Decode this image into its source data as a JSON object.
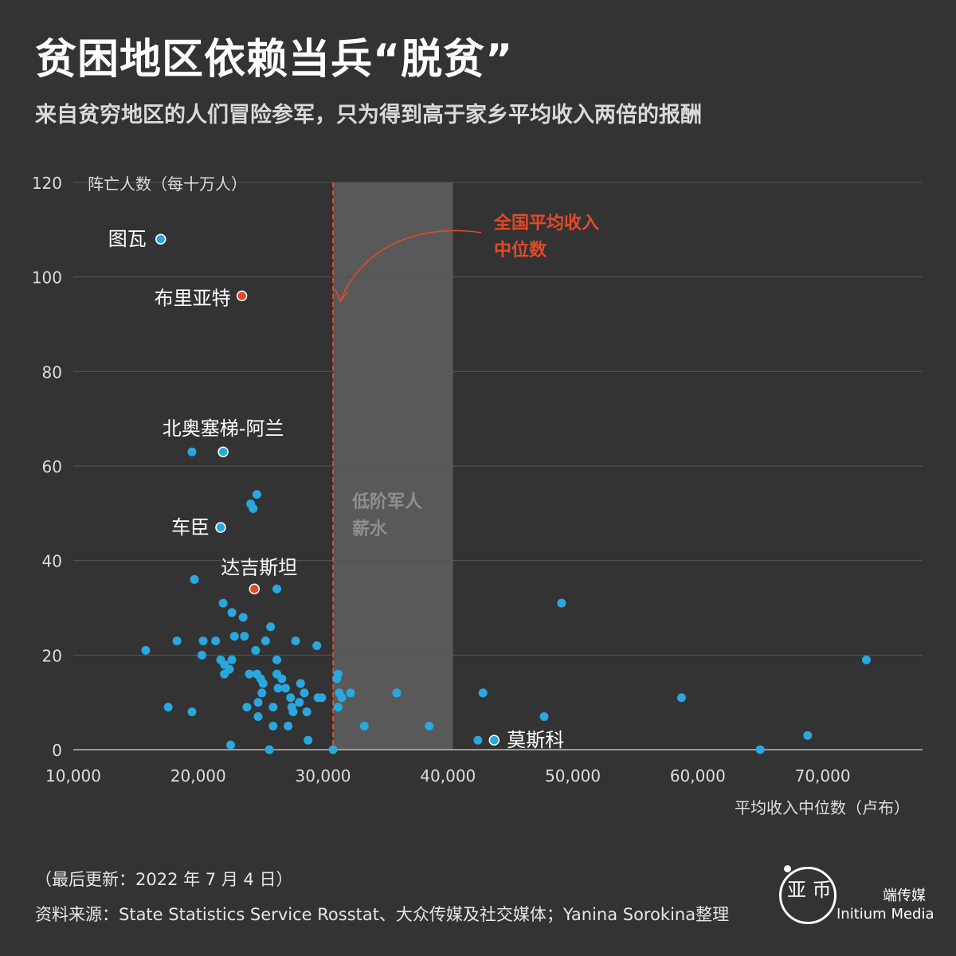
{
  "header": {
    "title": "贫困地区依赖当兵“脱贫”",
    "subtitle": "来自贫穷地区的人们冒险参军，只为得到高于家乡平均收入两倍的报酬"
  },
  "colors": {
    "background": "#333333",
    "dot": "#2aa7df",
    "highlight_dot": "#e04b2a",
    "median_line": "#e04b2a",
    "band": "#595959",
    "grid": "#555555"
  },
  "chart_data": {
    "type": "scatter",
    "xlabel": "平均收入中位数（卢布）",
    "ylabel": "阵亡人数（每十万人）",
    "xlim": [
      10000,
      78000
    ],
    "ylim": [
      0,
      120
    ],
    "x_ticks": [
      10000,
      20000,
      30000,
      40000,
      50000,
      60000,
      70000
    ],
    "x_tick_labels": [
      "10,000",
      "20,000",
      "30,000",
      "40,000",
      "50,000",
      "60,000",
      "70,000"
    ],
    "y_ticks": [
      0,
      20,
      40,
      60,
      80,
      100,
      120
    ],
    "y_tick_labels": [
      "0",
      "20",
      "40",
      "60",
      "80",
      "100",
      "120"
    ],
    "grid": true,
    "reference_line": {
      "x": 30800,
      "label_line1": "全国平均收入",
      "label_line2": "中位数"
    },
    "band": {
      "x_from": 30800,
      "x_to": 40400,
      "label_line1": "低阶军人",
      "label_line2": "薪水"
    },
    "labeled_points": [
      {
        "name": "图瓦",
        "x": 17000,
        "y": 108,
        "color": "blue"
      },
      {
        "name": "布里亚特",
        "x": 23500,
        "y": 96,
        "color": "red"
      },
      {
        "name": "北奥塞梯-阿兰",
        "x": 22000,
        "y": 63,
        "color": "blue"
      },
      {
        "name": "车臣",
        "x": 21800,
        "y": 47,
        "color": "blue"
      },
      {
        "name": "达吉斯坦",
        "x": 24500,
        "y": 34,
        "color": "red"
      },
      {
        "name": "莫斯科",
        "x": 43700,
        "y": 2,
        "color": "blue"
      }
    ],
    "points": [
      [
        15800,
        21
      ],
      [
        17600,
        9
      ],
      [
        18300,
        23
      ],
      [
        19500,
        8
      ],
      [
        19500,
        63
      ],
      [
        19700,
        36
      ],
      [
        20300,
        20
      ],
      [
        20400,
        23
      ],
      [
        21400,
        23
      ],
      [
        21800,
        19
      ],
      [
        22000,
        31
      ],
      [
        22100,
        18
      ],
      [
        22100,
        16
      ],
      [
        22500,
        17
      ],
      [
        22600,
        1
      ],
      [
        22700,
        29
      ],
      [
        22700,
        19
      ],
      [
        22900,
        24
      ],
      [
        23600,
        28
      ],
      [
        23700,
        24
      ],
      [
        23900,
        9
      ],
      [
        24100,
        16
      ],
      [
        24200,
        52
      ],
      [
        24400,
        51
      ],
      [
        24600,
        21
      ],
      [
        24700,
        16
      ],
      [
        24700,
        54
      ],
      [
        24800,
        10
      ],
      [
        24800,
        7
      ],
      [
        25000,
        15
      ],
      [
        25100,
        12
      ],
      [
        25200,
        14
      ],
      [
        25400,
        23
      ],
      [
        25700,
        0
      ],
      [
        25800,
        26
      ],
      [
        26000,
        9
      ],
      [
        26000,
        5
      ],
      [
        26300,
        34
      ],
      [
        26300,
        19
      ],
      [
        26300,
        16
      ],
      [
        26400,
        13
      ],
      [
        26700,
        15
      ],
      [
        27000,
        13
      ],
      [
        27200,
        5
      ],
      [
        27400,
        11
      ],
      [
        27500,
        9
      ],
      [
        27600,
        8
      ],
      [
        27800,
        23
      ],
      [
        28100,
        10
      ],
      [
        28200,
        14
      ],
      [
        28500,
        12
      ],
      [
        28700,
        8
      ],
      [
        28800,
        2
      ],
      [
        29500,
        22
      ],
      [
        29600,
        11
      ],
      [
        29900,
        11
      ],
      [
        30800,
        0
      ],
      [
        31100,
        15
      ],
      [
        31200,
        16
      ],
      [
        31200,
        9
      ],
      [
        31300,
        12
      ],
      [
        31500,
        11
      ],
      [
        32200,
        12
      ],
      [
        33300,
        5
      ],
      [
        35900,
        12
      ],
      [
        38500,
        5
      ],
      [
        42400,
        2
      ],
      [
        42800,
        12
      ],
      [
        47700,
        7
      ],
      [
        49100,
        31
      ],
      [
        58700,
        11
      ],
      [
        65000,
        0
      ],
      [
        68800,
        3
      ],
      [
        73500,
        19
      ]
    ]
  }
}
